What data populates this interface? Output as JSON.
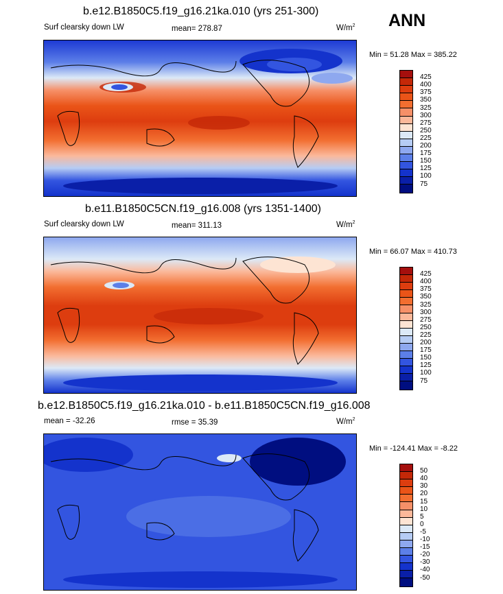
{
  "season_label": "ANN",
  "unit_base": "W/m",
  "unit_exp": "2",
  "panels": [
    {
      "title": "b.e12.B1850C5.f19_g16.21ka.010 (yrs 251-300)",
      "variable": "Surf clearsky down LW",
      "stat": "mean= 278.87",
      "minmax": "Min =  51.28 Max = 385.22",
      "colorbar_labels": [
        "425",
        "400",
        "375",
        "350",
        "325",
        "300",
        "275",
        "250",
        "225",
        "200",
        "175",
        "150",
        "125",
        "100",
        "75"
      ],
      "colorbar_colors": [
        "#a50f0d",
        "#c42808",
        "#dd3d0f",
        "#ea5418",
        "#f26e30",
        "#f69068",
        "#fbb89a",
        "#fde4d3",
        "#dce9f7",
        "#b6ccf4",
        "#8ea8ef",
        "#5c7fe8",
        "#3355e0",
        "#1433cc",
        "#0a1fa8",
        "#000e80"
      ]
    },
    {
      "title": "b.e11.B1850C5CN.f19_g16.008 (yrs 1351-1400)",
      "variable": "Surf clearsky down LW",
      "stat": "mean= 311.13",
      "minmax": "Min =  66.07 Max = 410.73",
      "colorbar_labels": [
        "425",
        "400",
        "375",
        "350",
        "325",
        "300",
        "275",
        "250",
        "225",
        "200",
        "175",
        "150",
        "125",
        "100",
        "75"
      ],
      "colorbar_colors": [
        "#a50f0d",
        "#c42808",
        "#dd3d0f",
        "#ea5418",
        "#f26e30",
        "#f69068",
        "#fbb89a",
        "#fde4d3",
        "#dce9f7",
        "#b6ccf4",
        "#8ea8ef",
        "#5c7fe8",
        "#3355e0",
        "#1433cc",
        "#0a1fa8",
        "#000e80"
      ]
    },
    {
      "title": "b.e12.B1850C5.f19_g16.21ka.010 - b.e11.B1850C5CN.f19_g16.008",
      "variable": "mean = -32.26",
      "stat": "rmse =  35.39",
      "minmax": "Min = -124.41 Max =  -8.22",
      "colorbar_labels": [
        "50",
        "40",
        "30",
        "20",
        "15",
        "10",
        "5",
        "0",
        "-5",
        "-10",
        "-15",
        "-20",
        "-30",
        "-40",
        "-50"
      ],
      "colorbar_colors": [
        "#a50f0d",
        "#c42808",
        "#dd3d0f",
        "#ea5418",
        "#f26e30",
        "#f69068",
        "#fbb89a",
        "#fde4d3",
        "#dce9f7",
        "#b6ccf4",
        "#8ea8ef",
        "#5c7fe8",
        "#3355e0",
        "#1433cc",
        "#0a1fa8",
        "#000e80"
      ]
    }
  ]
}
